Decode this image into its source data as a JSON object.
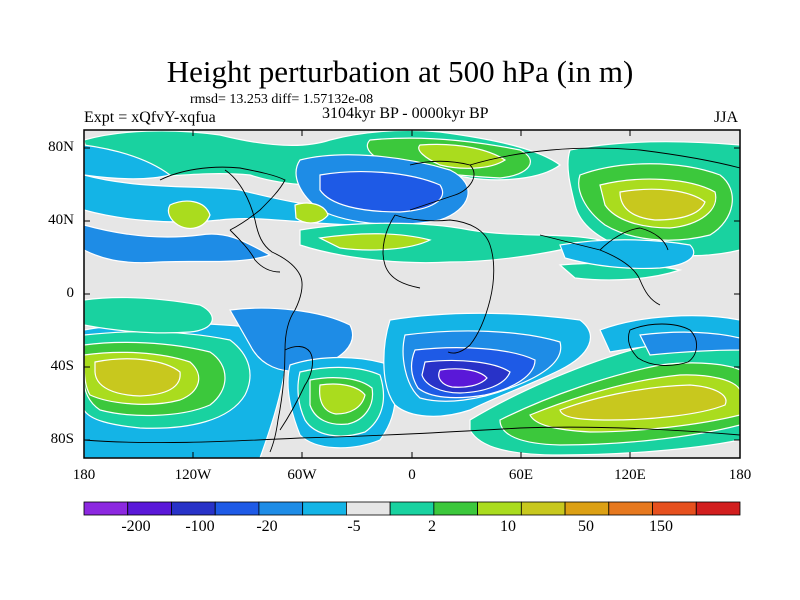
{
  "title": "Height perturbation at 500 hPa (in m)",
  "stats": "rmsd= 13.253  diff= 1.57132e-08",
  "experiment": "Expt = xQfvY-xqfua",
  "period": "3104kyr BP - 0000kyr BP",
  "season": "JJA",
  "y_axis_labels": [
    "80N",
    "40N",
    "0",
    "40S",
    "80S"
  ],
  "x_axis_labels": [
    "180",
    "120W",
    "60W",
    "0",
    "60E",
    "120E",
    "180"
  ],
  "colorbar": {
    "labels": [
      "-200",
      "-100",
      "-20",
      "-5",
      "2",
      "10",
      "50",
      "150"
    ],
    "colors": [
      "#8c28e0",
      "#5a18d8",
      "#2832c8",
      "#1e5ae6",
      "#1e8ce6",
      "#14b4e6",
      "#e6e6e6",
      "#19d2a0",
      "#3cc83c",
      "#aadc1e",
      "#c8c81e",
      "#dca014",
      "#e6781e",
      "#e6501e",
      "#d21e1e"
    ]
  },
  "map_colors": {
    "neutral": "#e6e6e6",
    "ocean_teal": "#19d2a0",
    "green": "#3cc83c",
    "yellow_green": "#aadc1e",
    "olive": "#c8c81e",
    "light_blue": "#14b4e6",
    "blue": "#1e8ce6",
    "dark_blue": "#1e5ae6",
    "deep_blue": "#2832c8",
    "violet": "#5a18d8"
  }
}
